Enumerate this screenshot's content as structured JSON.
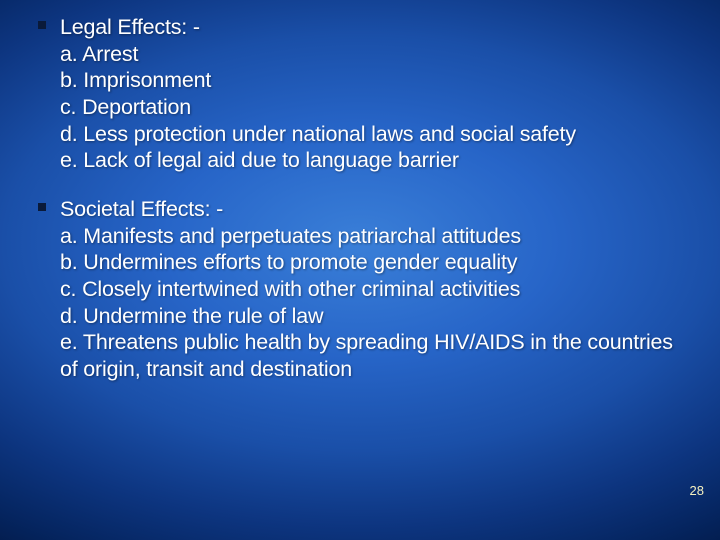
{
  "slide": {
    "background": {
      "type": "radial-gradient",
      "center_color": "#3a7fd8",
      "mid_color": "#1a4fa8",
      "edge_color": "#021a48"
    },
    "text_color": "#ffffff",
    "bullet_color": "#0a1a3a",
    "font_family": "Verdana",
    "font_size_pt": 16,
    "blocks": [
      {
        "title": "Legal Effects: -",
        "items": [
          "a. Arrest",
          "b. Imprisonment",
          "c. Deportation",
          "d. Less protection under national laws and  social safety",
          " e. Lack of legal aid due to language barrier"
        ]
      },
      {
        "title": "Societal Effects: -",
        "items": [
          " a. Manifests and perpetuates patriarchal attitudes",
          " b. Undermines efforts to promote gender equality",
          " c. Closely intertwined with other criminal activities",
          " d. Undermine the rule of law",
          " e. Threatens public health by spreading HIV/AIDS in the countries of origin, transit and destination"
        ]
      }
    ],
    "page_number": "28",
    "page_number_color": "#f5f0c0"
  }
}
